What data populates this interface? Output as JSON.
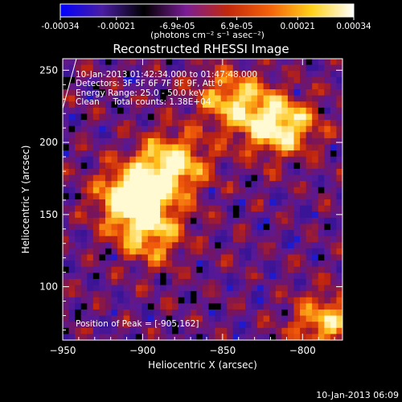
{
  "colorbar": {
    "tick_labels": [
      "-0.00034",
      "-0.00021",
      "-6.9e-05",
      "6.9e-05",
      "0.00021",
      "0.00034"
    ],
    "unit_label": "(photons cm⁻² s⁻¹ asec⁻²)",
    "range": [
      -0.00034,
      0.00034
    ],
    "colors": [
      "#0000ff",
      "#4a1ea3",
      "#000000",
      "#7a1d96",
      "#c2290b",
      "#f4620a",
      "#ffd21a",
      "#ffffff"
    ]
  },
  "chart_data": {
    "type": "heatmap",
    "title": "Reconstructed RHESSI Image",
    "xlabel": "Heliocentric X (arcsec)",
    "ylabel": "Heliocentric Y (arcsec)",
    "xlim": [
      -950,
      -775
    ],
    "ylim": [
      63,
      258
    ],
    "x_ticks": [
      -950,
      -900,
      -850,
      -800
    ],
    "y_ticks": [
      100,
      150,
      200,
      250
    ],
    "annotations": [
      "10-Jan-2013 01:42:34.000 to 01:47:48.000",
      "Detectors: 3F 5F 6F 7F 8F 9F, Att 0",
      "Energy Range: 25.0 - 50.0 keV",
      "Clean     Total counts: 1.38E+04"
    ],
    "peak_label": "Position of Peak = [-905,162]",
    "peak": [
      -905,
      162
    ],
    "bright_sources": [
      {
        "x": -905,
        "y": 162,
        "level": 1.0
      },
      {
        "x": -882,
        "y": 185,
        "level": 0.75
      },
      {
        "x": -815,
        "y": 212,
        "level": 0.85
      },
      {
        "x": -895,
        "y": 135,
        "level": 0.55
      },
      {
        "x": -845,
        "y": 230,
        "level": 0.6
      },
      {
        "x": -785,
        "y": 75,
        "level": 0.6
      }
    ]
  },
  "footer": {
    "timestamp": "10-Jan-2013 06:09"
  }
}
